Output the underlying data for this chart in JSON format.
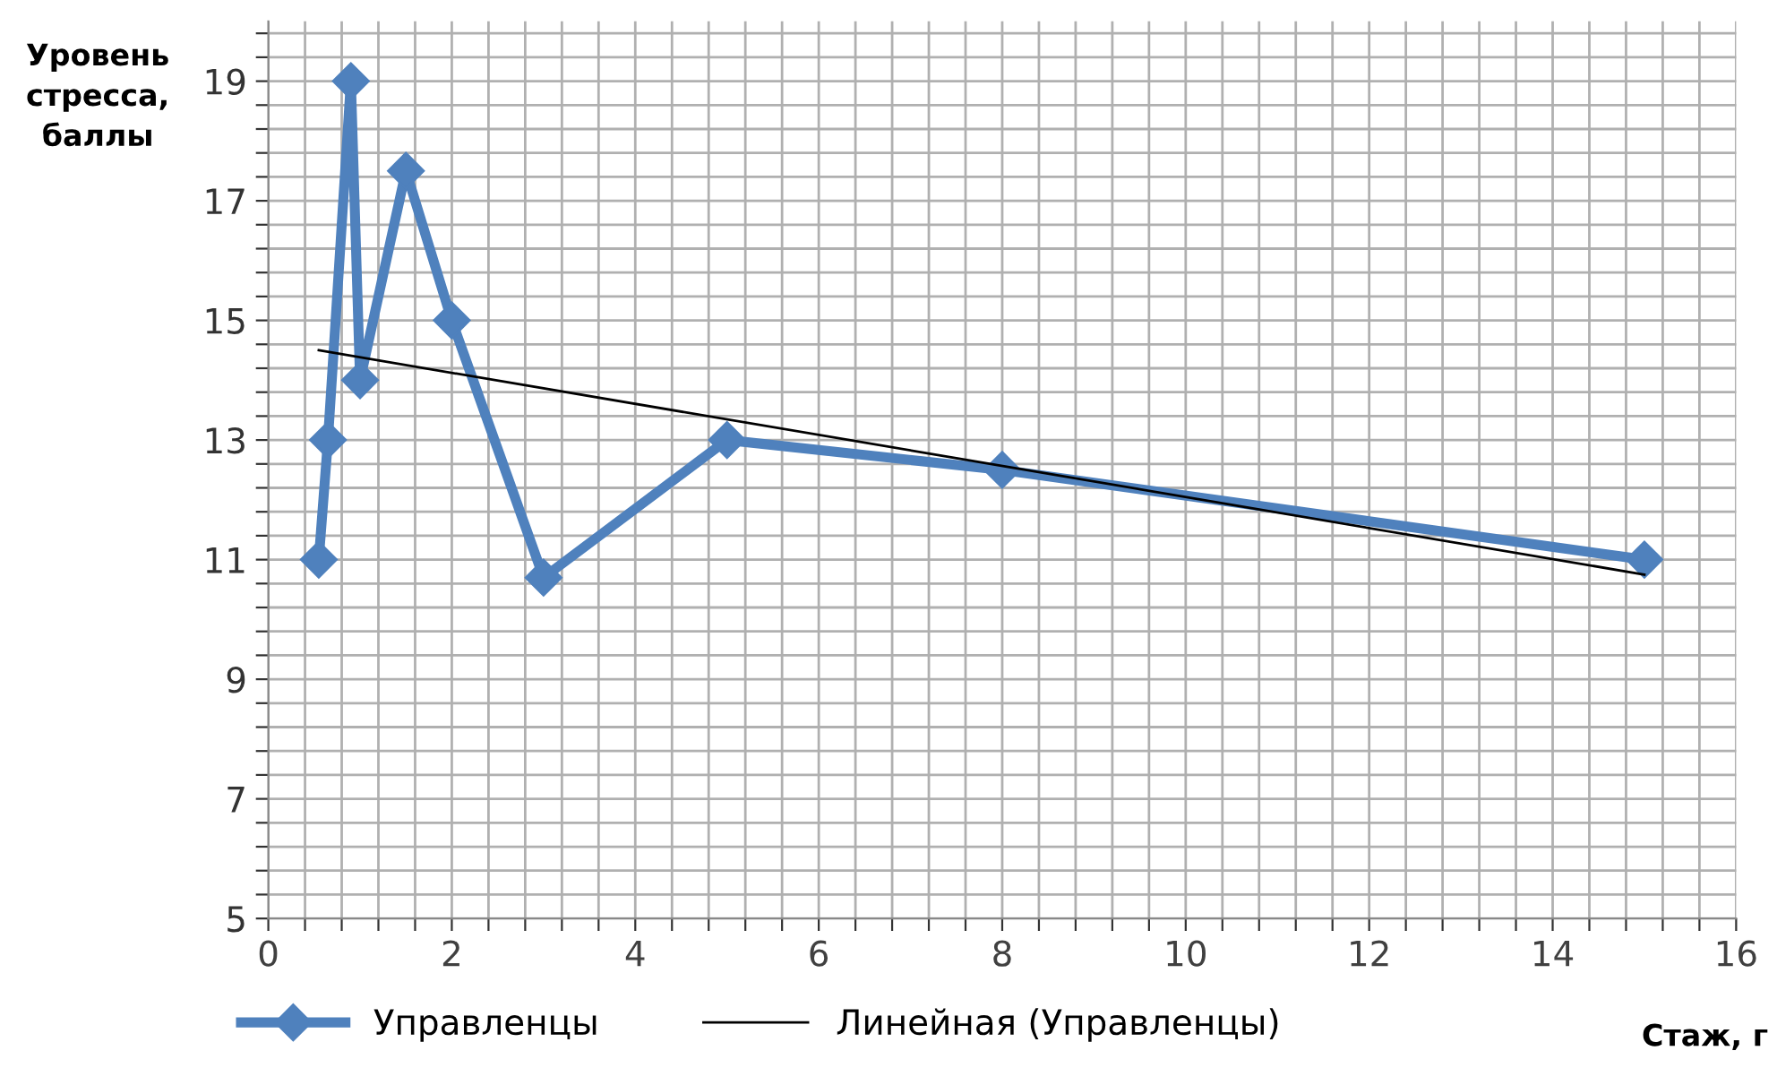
{
  "chart_data": {
    "type": "line",
    "xlabel": "Стаж, г",
    "ylabel": "Уровень\nстресса,\nбаллы",
    "xlim": [
      0,
      16
    ],
    "ylim": [
      5,
      20
    ],
    "xticks": [
      0,
      {
        "value": 0.4,
        "label": null
      },
      {
        "value": 0.8,
        "label": null
      },
      {
        "value": 1.2,
        "label": null
      },
      {
        "value": 1.6,
        "label": null
      },
      2,
      {
        "value": 2.4,
        "label": null
      },
      {
        "value": 2.8,
        "label": null
      },
      {
        "value": 3.2,
        "label": null
      },
      {
        "value": 3.6,
        "label": null
      },
      4,
      {
        "value": 4.4,
        "label": null
      },
      {
        "value": 4.8,
        "label": null
      },
      {
        "value": 5.2,
        "label": null
      },
      {
        "value": 5.6,
        "label": null
      },
      6,
      {
        "value": 6.4,
        "label": null
      },
      {
        "value": 6.8,
        "label": null
      },
      {
        "value": 7.2,
        "label": null
      },
      {
        "value": 7.6,
        "label": null
      },
      8,
      {
        "value": 8.4,
        "label": null
      },
      {
        "value": 8.8,
        "label": null
      },
      {
        "value": 9.2,
        "label": null
      },
      {
        "value": 9.6,
        "label": null
      },
      10,
      {
        "value": 10.4,
        "label": null
      },
      {
        "value": 10.8,
        "label": null
      },
      {
        "value": 11.2,
        "label": null
      },
      {
        "value": 11.6,
        "label": null
      },
      12,
      {
        "value": 12.4,
        "label": null
      },
      {
        "value": 12.8,
        "label": null
      },
      {
        "value": 13.2,
        "label": null
      },
      {
        "value": 13.6,
        "label": null
      },
      14,
      {
        "value": 14.4,
        "label": null
      },
      {
        "value": 14.8,
        "label": null
      },
      {
        "value": 15.2,
        "label": null
      },
      {
        "value": 15.6,
        "label": null
      },
      16
    ],
    "yticks": [
      5,
      {
        "value": 5.4,
        "label": null
      },
      {
        "value": 5.8,
        "label": null
      },
      {
        "value": 6.2,
        "label": null
      },
      {
        "value": 6.6,
        "label": null
      },
      7,
      {
        "value": 7.4,
        "label": null
      },
      {
        "value": 7.8,
        "label": null
      },
      {
        "value": 8.2,
        "label": null
      },
      {
        "value": 8.6,
        "label": null
      },
      9,
      {
        "value": 9.4,
        "label": null
      },
      {
        "value": 9.8,
        "label": null
      },
      {
        "value": 10.2,
        "label": null
      },
      {
        "value": 10.6,
        "label": null
      },
      11,
      {
        "value": 11.4,
        "label": null
      },
      {
        "value": 11.8,
        "label": null
      },
      {
        "value": 12.2,
        "label": null
      },
      {
        "value": 12.6,
        "label": null
      },
      13,
      {
        "value": 13.4,
        "label": null
      },
      {
        "value": 13.8,
        "label": null
      },
      {
        "value": 14.2,
        "label": null
      },
      {
        "value": 14.6,
        "label": null
      },
      15,
      {
        "value": 15.4,
        "label": null
      },
      {
        "value": 15.8,
        "label": null
      },
      {
        "value": 16.2,
        "label": null
      },
      {
        "value": 16.6,
        "label": null
      },
      17,
      {
        "value": 17.4,
        "label": null
      },
      {
        "value": 17.8,
        "label": null
      },
      {
        "value": 18.2,
        "label": null
      },
      {
        "value": 18.6,
        "label": null
      },
      19,
      {
        "value": 19.4,
        "label": null
      },
      {
        "value": 19.8,
        "label": null
      }
    ],
    "grid": true,
    "legend": "bottom",
    "series": [
      {
        "name": "Управленцы",
        "color": "#4f81bd",
        "marker": "diamond",
        "x": [
          0.55,
          0.65,
          0.9,
          1,
          1.5,
          2,
          3,
          5,
          8,
          15
        ],
        "values": [
          11,
          13,
          19,
          14,
          17.5,
          15,
          10.7,
          13,
          12.5,
          11
        ]
      },
      {
        "name": "Линейная (Управленцы)",
        "color": "#000000",
        "marker": "none",
        "x": [
          0.55,
          15
        ],
        "values": [
          14.5,
          10.75
        ]
      }
    ]
  }
}
